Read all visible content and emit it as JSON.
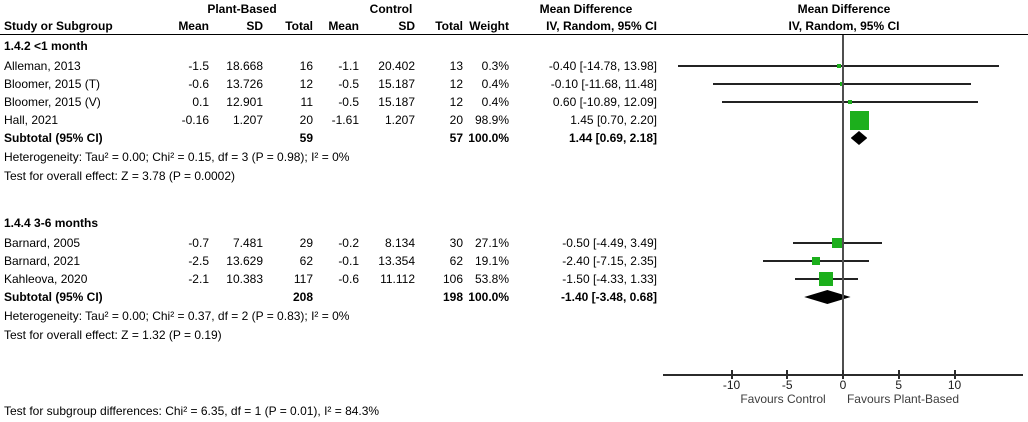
{
  "colors": {
    "marker": "#1CAF1C",
    "diamond": "#000000",
    "ci_line": "#232323",
    "zero_line": "#4f4f4f"
  },
  "chart_data": {
    "type": "forest",
    "effect_header": "Mean Difference",
    "method_header": "IV, Random, 95% CI",
    "group1": "Plant-Based",
    "group2": "Control",
    "col_headers": {
      "study": "Study or Subgroup",
      "mean": "Mean",
      "sd": "SD",
      "total": "Total",
      "weight": "Weight"
    },
    "axis": {
      "ticks": [
        -10,
        -5,
        0,
        5,
        10
      ],
      "min": -16,
      "max": 16,
      "favours_left": "Favours Control",
      "favours_right": "Favours Plant-Based"
    },
    "subgroups": [
      {
        "heading": "1.4.2 <1 month",
        "studies": [
          {
            "name": "Alleman, 2013",
            "mean1": "-1.5",
            "sd1": "18.668",
            "total1": "16",
            "mean2": "-1.1",
            "sd2": "20.402",
            "total2": "13",
            "weight": "0.3%",
            "weight_pct": 0.3,
            "md": -0.4,
            "lo": -14.78,
            "hi": 13.98,
            "label": "-0.40 [-14.78, 13.98]"
          },
          {
            "name": "Bloomer, 2015 (T)",
            "mean1": "-0.6",
            "sd1": "13.726",
            "total1": "12",
            "mean2": "-0.5",
            "sd2": "15.187",
            "total2": "12",
            "weight": "0.4%",
            "weight_pct": 0.4,
            "md": -0.1,
            "lo": -11.68,
            "hi": 11.48,
            "label": "-0.10 [-11.68, 11.48]"
          },
          {
            "name": "Bloomer, 2015 (V)",
            "mean1": "0.1",
            "sd1": "12.901",
            "total1": "11",
            "mean2": "-0.5",
            "sd2": "15.187",
            "total2": "12",
            "weight": "0.4%",
            "weight_pct": 0.4,
            "md": 0.6,
            "lo": -10.89,
            "hi": 12.09,
            "label": "0.60 [-10.89, 12.09]"
          },
          {
            "name": "Hall, 2021",
            "mean1": "-0.16",
            "sd1": "1.207",
            "total1": "20",
            "mean2": "-1.61",
            "sd2": "1.207",
            "total2": "20",
            "weight": "98.9%",
            "weight_pct": 98.9,
            "md": 1.45,
            "lo": 0.7,
            "hi": 2.2,
            "label": "1.45 [0.70, 2.20]"
          }
        ],
        "subtotal": {
          "name": "Subtotal (95% CI)",
          "total1": "59",
          "total2": "57",
          "weight": "100.0%",
          "md": 1.44,
          "lo": 0.69,
          "hi": 2.18,
          "label": "1.44 [0.69, 2.18]"
        },
        "heterogeneity": "Heterogeneity: Tau² = 0.00; Chi² = 0.15, df = 3 (P = 0.98); I² = 0%",
        "overall": "Test for overall effect: Z = 3.78 (P = 0.0002)"
      },
      {
        "heading": "1.4.4 3-6 months",
        "studies": [
          {
            "name": "Barnard, 2005",
            "mean1": "-0.7",
            "sd1": "7.481",
            "total1": "29",
            "mean2": "-0.2",
            "sd2": "8.134",
            "total2": "30",
            "weight": "27.1%",
            "weight_pct": 27.1,
            "md": -0.5,
            "lo": -4.49,
            "hi": 3.49,
            "label": "-0.50 [-4.49, 3.49]"
          },
          {
            "name": "Barnard, 2021",
            "mean1": "-2.5",
            "sd1": "13.629",
            "total1": "62",
            "mean2": "-0.1",
            "sd2": "13.354",
            "total2": "62",
            "weight": "19.1%",
            "weight_pct": 19.1,
            "md": -2.4,
            "lo": -7.15,
            "hi": 2.35,
            "label": "-2.40 [-7.15, 2.35]"
          },
          {
            "name": "Kahleova, 2020",
            "mean1": "-2.1",
            "sd1": "10.383",
            "total1": "117",
            "mean2": "-0.6",
            "sd2": "11.112",
            "total2": "106",
            "weight": "53.8%",
            "weight_pct": 53.8,
            "md": -1.5,
            "lo": -4.33,
            "hi": 1.33,
            "label": "-1.50 [-4.33, 1.33]"
          }
        ],
        "subtotal": {
          "name": "Subtotal (95% CI)",
          "total1": "208",
          "total2": "198",
          "weight": "100.0%",
          "md": -1.4,
          "lo": -3.48,
          "hi": 0.68,
          "label": "-1.40 [-3.48, 0.68]"
        },
        "heterogeneity": "Heterogeneity: Tau² = 0.00; Chi² = 0.37, df = 2 (P = 0.83); I² = 0%",
        "overall": "Test for overall effect: Z = 1.32 (P = 0.19)"
      }
    ],
    "footer": "Test for subgroup differences: Chi² = 6.35, df = 1 (P = 0.01), I² = 84.3%"
  }
}
